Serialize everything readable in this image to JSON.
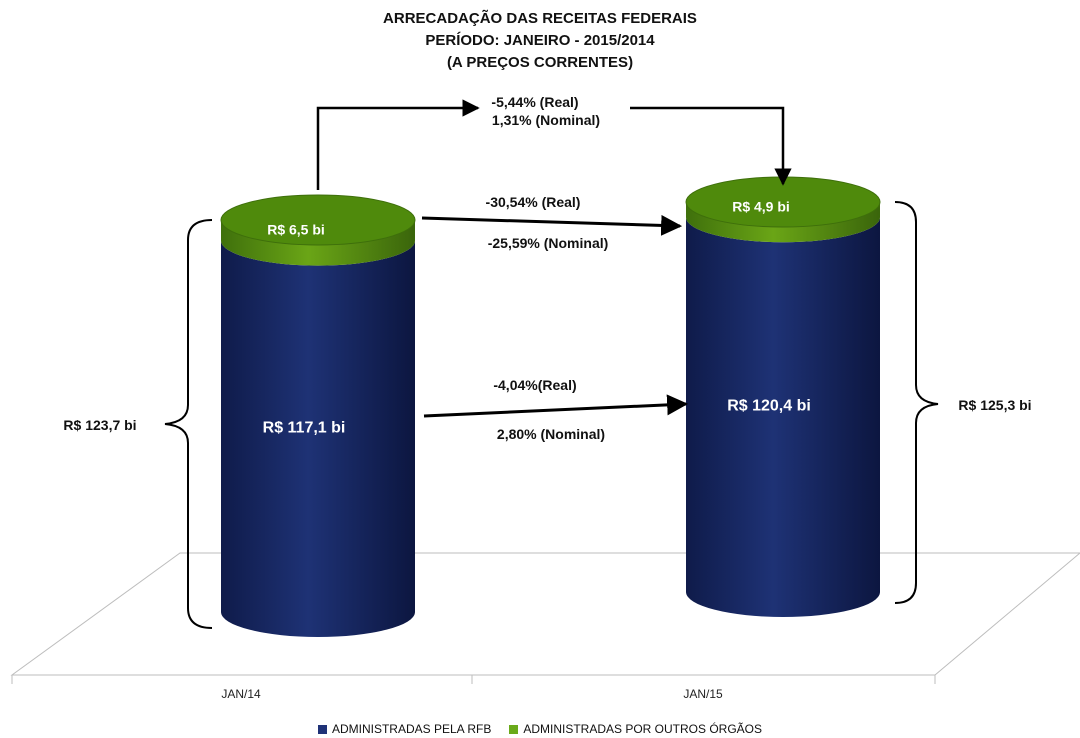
{
  "title": {
    "line1": "ARRECADAÇÃO DAS RECEITAS FEDERAIS",
    "line2": "PERÍODO: JANEIRO - 2015/2014",
    "line3": "(A PREÇOS CORRENTES)"
  },
  "colors": {
    "rfb": "#1d2f6f",
    "rfb_dark": "#0d1640",
    "outros": "#5a9a0c",
    "outros_top": "#4f8a0c",
    "outros_dark": "#3e6f0b",
    "legend_rfb": "#1f3277",
    "legend_outros": "#6aaa1a"
  },
  "chart_data": {
    "type": "bar",
    "stacked": true,
    "style": "3d-cylinder",
    "categories": [
      "JAN/14",
      "JAN/15"
    ],
    "series": [
      {
        "name": "ADMINISTRADAS PELA RFB",
        "values": [
          117.1,
          120.4
        ],
        "labels": [
          "R$ 117,1  bi",
          "R$ 120,4  bi"
        ]
      },
      {
        "name": "ADMINISTRADAS POR OUTROS ÓRGÃOS",
        "values": [
          6.5,
          4.9
        ],
        "labels": [
          "R$ 6,5  bi",
          "R$ 4,9  bi"
        ]
      }
    ],
    "totals": [
      123.7,
      125.3
    ],
    "total_labels": [
      "R$ 123,7  bi",
      "R$ 125,3  bi"
    ],
    "annotations": {
      "total_change": {
        "real": "-5,44% (Real)",
        "nominal": "1,31% (Nominal)"
      },
      "outros_change": {
        "real": "-30,54% (Real)",
        "nominal": "-25,59% (Nominal)"
      },
      "rfb_change": {
        "real": "-4,04%(Real)",
        "nominal": "2,80% (Nominal)"
      }
    },
    "legend_position": "bottom",
    "grid": false
  }
}
